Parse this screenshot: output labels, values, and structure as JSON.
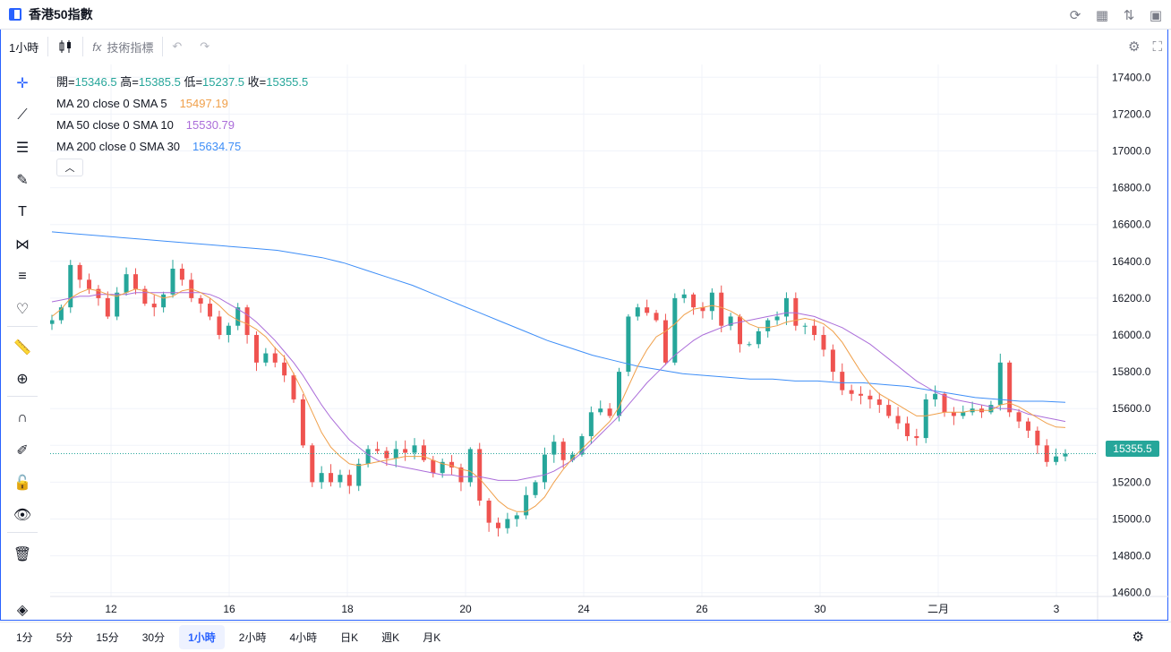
{
  "window": {
    "title": "香港50指數"
  },
  "toolbar": {
    "interval": "1小時",
    "indicators_label": "技術指標"
  },
  "legend": {
    "ohlc": {
      "open_label": "開=",
      "open": "15346.5",
      "high_label": "高=",
      "high": "15385.5",
      "low_label": "低=",
      "low": "15237.5",
      "close_label": "收=",
      "close": "15355.5"
    },
    "studies": [
      {
        "label": "MA 20 close 0 SMA 5",
        "value": "15497.19",
        "color": "#f0a04b"
      },
      {
        "label": "MA 50 close 0 SMA 10",
        "value": "15530.79",
        "color": "#ab6dd9"
      },
      {
        "label": "MA 200 close 0 SMA 30",
        "value": "15634.75",
        "color": "#3e8ef7"
      }
    ]
  },
  "colors": {
    "up": "#26a69a",
    "down": "#ef5350",
    "accent": "#2962ff",
    "grid": "#f0f3fa"
  },
  "last_price": "15355.5",
  "timeframes": [
    "1分",
    "5分",
    "15分",
    "30分",
    "1小時",
    "2小時",
    "4小時",
    "日K",
    "週K",
    "月K"
  ],
  "active_timeframe": "1小時",
  "chart_data": {
    "type": "candlestick",
    "y_axis": {
      "ticks": [
        "17400.0",
        "17200.0",
        "17000.0",
        "16800.0",
        "16600.0",
        "16400.0",
        "16200.0",
        "16000.0",
        "15800.0",
        "15600.0",
        "15400.0",
        "15200.0",
        "15000.0",
        "14800.0",
        "14600.0"
      ],
      "range": [
        14550,
        17450
      ]
    },
    "x_axis": {
      "ticks": [
        "12",
        "16",
        "18",
        "20",
        "24",
        "26",
        "30",
        "二月",
        "3"
      ]
    },
    "close_path": [
      16080,
      16150,
      16380,
      16300,
      16250,
      16200,
      16100,
      16230,
      16330,
      16250,
      16170,
      16150,
      16220,
      16360,
      16300,
      16200,
      16170,
      16100,
      16000,
      16050,
      16150,
      16000,
      15850,
      15900,
      15850,
      15780,
      15650,
      15400,
      15200,
      15250,
      15200,
      15240,
      15180,
      15300,
      15380,
      15370,
      15330,
      15380,
      15360,
      15400,
      15320,
      15250,
      15310,
      15280,
      15200,
      15380,
      15100,
      14980,
      14950,
      15000,
      15020,
      15130,
      15200,
      15350,
      15420,
      15320,
      15350,
      15450,
      15580,
      15600,
      15560,
      15800,
      16100,
      16150,
      16120,
      16080,
      15850,
      16200,
      16220,
      16150,
      16130,
      16230,
      16050,
      16100,
      15950,
      15950,
      16020,
      16080,
      16100,
      16200,
      16050,
      16050,
      16000,
      15920,
      15800,
      15700,
      15680,
      15670,
      15650,
      15620,
      15560,
      15520,
      15450,
      15440,
      15650,
      15680,
      15580,
      15560,
      15580,
      15600,
      15580,
      15620,
      15850,
      15580,
      15530,
      15480,
      15400,
      15310,
      15340,
      15355
    ],
    "ma20_path": [
      16100,
      16140,
      16200,
      16230,
      16250,
      16240,
      16220,
      16210,
      16230,
      16250,
      16240,
      16220,
      16200,
      16210,
      16240,
      16250,
      16230,
      16200,
      16160,
      16110,
      16080,
      16060,
      16030,
      15990,
      15930,
      15880,
      15790,
      15690,
      15580,
      15470,
      15390,
      15340,
      15300,
      15290,
      15300,
      15310,
      15320,
      15330,
      15340,
      15340,
      15340,
      15320,
      15300,
      15290,
      15270,
      15260,
      15220,
      15160,
      15100,
      15060,
      15040,
      15040,
      15070,
      15120,
      15200,
      15270,
      15330,
      15380,
      15430,
      15480,
      15530,
      15610,
      15720,
      15830,
      15920,
      15990,
      16020,
      16060,
      16110,
      16140,
      16150,
      16160,
      16150,
      16130,
      16100,
      16060,
      16040,
      16040,
      16050,
      16070,
      16080,
      16090,
      16080,
      16060,
      16020,
      15960,
      15880,
      15800,
      15730,
      15680,
      15650,
      15620,
      15590,
      15560,
      15560,
      15570,
      15580,
      15580,
      15580,
      15590,
      15590,
      15590,
      15620,
      15630,
      15610,
      15580,
      15550,
      15520,
      15500,
      15497
    ],
    "ma50_path": [
      16180,
      16190,
      16200,
      16210,
      16210,
      16220,
      16220,
      16220,
      16220,
      16230,
      16230,
      16230,
      16230,
      16230,
      16230,
      16230,
      16230,
      16220,
      16200,
      16170,
      16140,
      16110,
      16070,
      16020,
      15970,
      15910,
      15850,
      15780,
      15700,
      15620,
      15550,
      15490,
      15430,
      15390,
      15350,
      15320,
      15300,
      15290,
      15280,
      15270,
      15260,
      15250,
      15240,
      15240,
      15230,
      15230,
      15230,
      15220,
      15210,
      15210,
      15210,
      15220,
      15230,
      15240,
      15260,
      15290,
      15320,
      15360,
      15410,
      15460,
      15510,
      15560,
      15620,
      15680,
      15740,
      15790,
      15840,
      15890,
      15930,
      15970,
      16000,
      16020,
      16040,
      16060,
      16070,
      16080,
      16090,
      16100,
      16110,
      16120,
      16120,
      16110,
      16100,
      16080,
      16060,
      16040,
      16010,
      15980,
      15950,
      15910,
      15870,
      15830,
      15790,
      15750,
      15720,
      15690,
      15670,
      15650,
      15640,
      15630,
      15620,
      15610,
      15600,
      15600,
      15590,
      15570,
      15560,
      15550,
      15540,
      15530
    ],
    "ma200_path": [
      16560,
      16550,
      16540,
      16530,
      16520,
      16510,
      16500,
      16490,
      16480,
      16470,
      16460,
      16440,
      16420,
      16390,
      16350,
      16310,
      16270,
      16220,
      16170,
      16120,
      16070,
      16020,
      15970,
      15930,
      15890,
      15860,
      15830,
      15810,
      15790,
      15780,
      15770,
      15760,
      15760,
      15750,
      15750,
      15740,
      15740,
      15730,
      15720,
      15700,
      15680,
      15660,
      15650,
      15640,
      15640,
      15634
    ]
  }
}
